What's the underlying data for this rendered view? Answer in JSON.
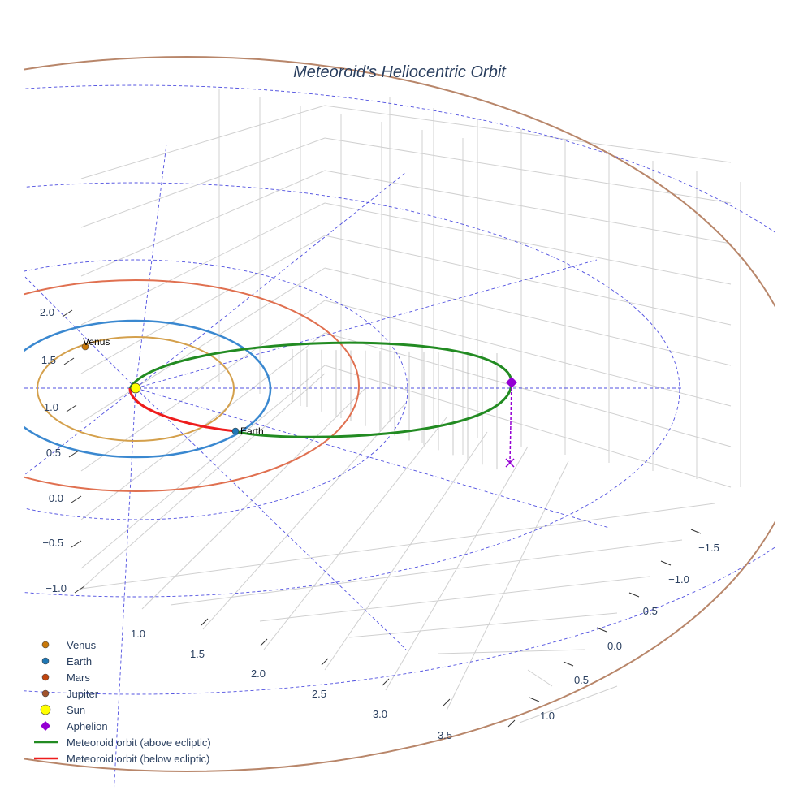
{
  "chart_data": {
    "type": "scatter3d",
    "title": "Meteoroid's Heliocentric Orbit",
    "axes": {
      "x": {
        "ticks": [
          "1.0",
          "1.5",
          "2.0",
          "2.5",
          "3.0",
          "3.5"
        ]
      },
      "y": {
        "ticks": [
          "−1.5",
          "−1.0",
          "−0.5",
          "0.0",
          "0.5",
          "1.0"
        ]
      },
      "z": {
        "ticks": [
          "2.0",
          "1.5",
          "1.0",
          "0.5",
          "0.0",
          "−0.5",
          "−1.0"
        ]
      }
    },
    "grid": true,
    "legend_position": "bottom-left",
    "point_labels": {
      "venus": "Venus",
      "earth": "Earth"
    },
    "traces": [
      {
        "name": "Venus",
        "kind": "marker",
        "color": "#c8780a",
        "orbit_color": "#d4a04c",
        "orbit_radius_au": 0.72
      },
      {
        "name": "Earth",
        "kind": "marker",
        "color": "#1f77b4",
        "orbit_color": "#3a88d0",
        "orbit_radius_au": 1.0
      },
      {
        "name": "Mars",
        "kind": "marker",
        "color": "#c0440e",
        "orbit_color": "#e07050",
        "orbit_radius_au": 1.52
      },
      {
        "name": "Jupiter",
        "kind": "marker",
        "color": "#a0522d",
        "orbit_color": "#b8866a",
        "orbit_radius_au": 5.2
      },
      {
        "name": "Sun",
        "kind": "marker",
        "color": "#ffff00"
      },
      {
        "name": "Aphelion",
        "kind": "diamond",
        "color": "#9400d3"
      },
      {
        "name": "Meteoroid orbit (above ecliptic)",
        "kind": "line",
        "color": "#228b22"
      },
      {
        "name": "Meteoroid orbit (below ecliptic)",
        "kind": "line",
        "color": "#ee1c1c"
      }
    ]
  }
}
